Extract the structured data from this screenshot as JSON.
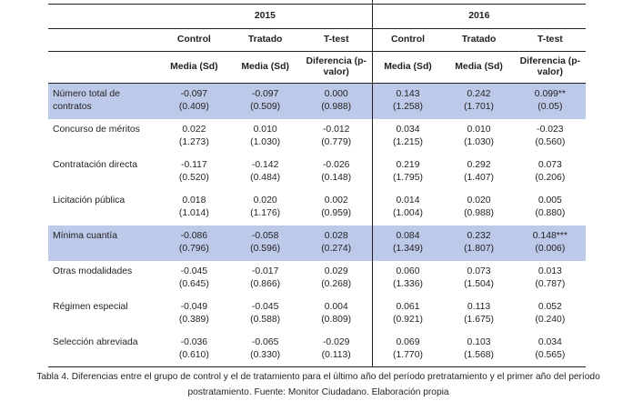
{
  "years": [
    "2015",
    "2016"
  ],
  "groups": [
    "Control",
    "Tratado",
    "T-test",
    "Control",
    "Tratado",
    "T-test"
  ],
  "stats": [
    "Media (Sd)",
    "Media  (Sd)",
    "Diferencia (p-valor)",
    "Media (Sd)",
    "Media  (Sd)",
    "Diferencia (p-valor)"
  ],
  "rows": [
    {
      "label": "Número total de contratos",
      "cells": [
        [
          "-0.097",
          "(0.409)"
        ],
        [
          "-0.097",
          "(0.509)"
        ],
        [
          "0.000",
          "(0.988)"
        ],
        [
          "0.143",
          "(1.258)"
        ],
        [
          "0.242",
          "(1.701)"
        ],
        [
          "0.099**",
          "(0.05)"
        ]
      ]
    },
    {
      "label": "Concurso de méritos",
      "cells": [
        [
          "0.022",
          "(1.273)"
        ],
        [
          "0.010",
          "(1.030)"
        ],
        [
          "-0.012",
          "(0.779)"
        ],
        [
          "0.034",
          "(1.215)"
        ],
        [
          "0.010",
          "(1.030)"
        ],
        [
          "-0.023",
          "(0.560)"
        ]
      ]
    },
    {
      "label": "Contratación directa",
      "cells": [
        [
          "-0.117",
          "(0.520)"
        ],
        [
          "-0.142",
          "(0.484)"
        ],
        [
          "-0.026",
          "(0.148)"
        ],
        [
          "0.219",
          "(1.795)"
        ],
        [
          "0.292",
          "(1.407)"
        ],
        [
          "0.073",
          "(0.206)"
        ]
      ]
    },
    {
      "label": "Licitación pública",
      "cells": [
        [
          "0.018",
          "(1.014)"
        ],
        [
          "0.020",
          "(1.176)"
        ],
        [
          "0.002",
          "(0.959)"
        ],
        [
          "0.014",
          "(1.004)"
        ],
        [
          "0.020",
          "(0.988)"
        ],
        [
          "0.005",
          "(0.880)"
        ]
      ]
    },
    {
      "label": "Mínima cuantía",
      "cells": [
        [
          "-0.086",
          "(0.796)"
        ],
        [
          "-0.058",
          "(0.596)"
        ],
        [
          "0.028",
          "(0.274)"
        ],
        [
          "0.084",
          "(1.349)"
        ],
        [
          "0.232",
          "(1.807)"
        ],
        [
          "0.148***",
          "(0.006)"
        ]
      ]
    },
    {
      "label": "Otras modalidades",
      "cells": [
        [
          "-0.045",
          "(0.645)"
        ],
        [
          "-0.017",
          "(0.866)"
        ],
        [
          "0.029",
          "(0.268)"
        ],
        [
          "0.060",
          "(1.336)"
        ],
        [
          "0.073",
          "(1.504)"
        ],
        [
          "0.013",
          "(0.787)"
        ]
      ]
    },
    {
      "label": "Régimen especial",
      "cells": [
        [
          "-0.049",
          "(0.389)"
        ],
        [
          "-0.045",
          "(0.588)"
        ],
        [
          "0.004",
          "(0.809)"
        ],
        [
          "0.061",
          "(0.921)"
        ],
        [
          "0.113",
          "(1.675)"
        ],
        [
          "0.052",
          "(0.240)"
        ]
      ]
    },
    {
      "label": "Selección abreviada",
      "cells": [
        [
          "-0.036",
          "(0.610)"
        ],
        [
          "-0.065",
          "(0.330)"
        ],
        [
          "-0.029",
          "(0.113)"
        ],
        [
          "0.069",
          "(1.770)"
        ],
        [
          "0.103",
          "(1.568)"
        ],
        [
          "0.034",
          "(0.565)"
        ]
      ]
    }
  ],
  "highlight_color": "#bcc9e8",
  "caption": "Tabla 4. Diferencias entre el grupo de control y el de tratamiento para el último año del período pretratamiento y el primer año del período postratamiento. Fuente: Monitor Ciudadano. Elaboración propia"
}
